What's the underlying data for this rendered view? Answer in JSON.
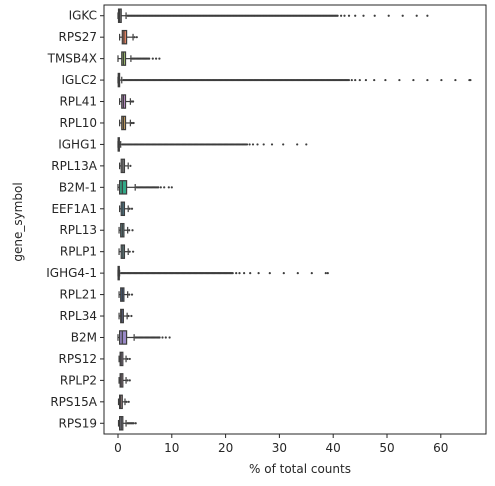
{
  "chart_data": {
    "type": "boxplot",
    "orientation": "horizontal",
    "xlabel": "% of total counts",
    "ylabel": "gene_symbol",
    "xlim": [
      -2.6,
      68.4
    ],
    "xticks": [
      0,
      10,
      20,
      30,
      40,
      50,
      60
    ],
    "grid": false,
    "categories": [
      "IGKC",
      "RPS27",
      "TMSB4X",
      "IGLC2",
      "RPL41",
      "RPL10",
      "IGHG1",
      "RPL13A",
      "B2M-1",
      "EEF1A1",
      "RPL13",
      "RPLP1",
      "IGHG4-1",
      "RPL21",
      "RPL34",
      "B2M",
      "RPS12",
      "RPLP2",
      "RPS15A",
      "RPS19"
    ],
    "colors": [
      "#8c8c8c",
      "#e08060",
      "#a0c070",
      "#80aacc",
      "#c090cc",
      "#c8a060",
      "#d0b0d0",
      "#b0b0b0",
      "#33aa88",
      "#5da8c8",
      "#6a9aa0",
      "#7aa8b0",
      "#9aa060",
      "#4a6a9a",
      "#6a7ab0",
      "#9a8ac8",
      "#b8a0c0",
      "#c8a0b0",
      "#d0a8a8",
      "#9090a0"
    ],
    "boxes": [
      {
        "min": 0.0,
        "q1": 0.1,
        "median": 0.3,
        "q3": 0.6,
        "max": 1.5,
        "outlier_max": 57.5,
        "outlier_dense_to": 41.0
      },
      {
        "min": 0.3,
        "q1": 0.8,
        "median": 1.1,
        "q3": 1.6,
        "max": 2.8,
        "outlier_max": 3.5,
        "outlier_dense_to": 3.2
      },
      {
        "min": 0.0,
        "q1": 0.7,
        "median": 1.0,
        "q3": 1.4,
        "max": 2.4,
        "outlier_max": 7.7,
        "outlier_dense_to": 6.0
      },
      {
        "min": 0.0,
        "q1": 0.05,
        "median": 0.1,
        "q3": 0.3,
        "max": 0.7,
        "outlier_max": 65.5,
        "outlier_dense_to": 43.0
      },
      {
        "min": 0.3,
        "q1": 0.7,
        "median": 1.0,
        "q3": 1.4,
        "max": 2.3,
        "outlier_max": 2.8,
        "outlier_dense_to": 2.6
      },
      {
        "min": 0.3,
        "q1": 0.7,
        "median": 1.0,
        "q3": 1.4,
        "max": 2.3,
        "outlier_max": 2.9,
        "outlier_dense_to": 2.7
      },
      {
        "min": 0.0,
        "q1": 0.03,
        "median": 0.08,
        "q3": 0.2,
        "max": 0.5,
        "outlier_max": 35.0,
        "outlier_dense_to": 24.0
      },
      {
        "min": 0.3,
        "q1": 0.6,
        "median": 0.9,
        "q3": 1.2,
        "max": 1.9,
        "outlier_max": 2.3,
        "outlier_dense_to": 2.1
      },
      {
        "min": 0.0,
        "q1": 0.3,
        "median": 0.8,
        "q3": 1.6,
        "max": 3.2,
        "outlier_max": 10.0,
        "outlier_dense_to": 7.5
      },
      {
        "min": 0.3,
        "q1": 0.6,
        "median": 0.9,
        "q3": 1.2,
        "max": 1.9,
        "outlier_max": 2.6,
        "outlier_dense_to": 2.3
      },
      {
        "min": 0.2,
        "q1": 0.5,
        "median": 0.8,
        "q3": 1.1,
        "max": 1.8,
        "outlier_max": 2.7,
        "outlier_dense_to": 2.3
      },
      {
        "min": 0.2,
        "q1": 0.6,
        "median": 0.9,
        "q3": 1.2,
        "max": 1.9,
        "outlier_max": 2.8,
        "outlier_dense_to": 2.4
      },
      {
        "min": 0.0,
        "q1": 0.02,
        "median": 0.05,
        "q3": 0.12,
        "max": 0.3,
        "outlier_max": 39.0,
        "outlier_dense_to": 21.5
      },
      {
        "min": 0.2,
        "q1": 0.5,
        "median": 0.8,
        "q3": 1.1,
        "max": 1.8,
        "outlier_max": 2.6,
        "outlier_dense_to": 2.3
      },
      {
        "min": 0.2,
        "q1": 0.5,
        "median": 0.7,
        "q3": 1.0,
        "max": 1.7,
        "outlier_max": 2.5,
        "outlier_dense_to": 2.2
      },
      {
        "min": 0.0,
        "q1": 0.3,
        "median": 0.8,
        "q3": 1.6,
        "max": 3.0,
        "outlier_max": 9.6,
        "outlier_dense_to": 7.8
      },
      {
        "min": 0.2,
        "q1": 0.4,
        "median": 0.6,
        "q3": 0.9,
        "max": 1.5,
        "outlier_max": 2.2,
        "outlier_dense_to": 1.9
      },
      {
        "min": 0.2,
        "q1": 0.4,
        "median": 0.6,
        "q3": 0.9,
        "max": 1.5,
        "outlier_max": 2.2,
        "outlier_dense_to": 1.9
      },
      {
        "min": 0.1,
        "q1": 0.3,
        "median": 0.5,
        "q3": 0.8,
        "max": 1.3,
        "outlier_max": 2.0,
        "outlier_dense_to": 1.7
      },
      {
        "min": 0.1,
        "q1": 0.3,
        "median": 0.6,
        "q3": 0.9,
        "max": 1.5,
        "outlier_max": 3.3,
        "outlier_dense_to": 3.0
      }
    ]
  }
}
